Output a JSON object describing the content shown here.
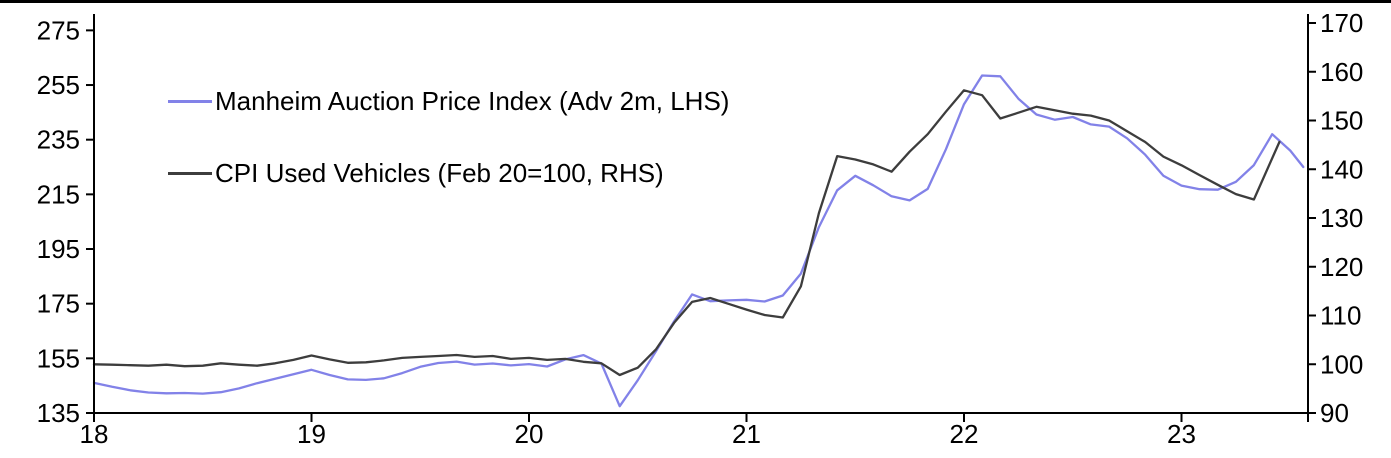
{
  "chart_data": {
    "type": "line",
    "title": "",
    "x_axis": {
      "ticks": [
        18,
        19,
        20,
        21,
        22,
        23
      ],
      "range": [
        18,
        23.58
      ],
      "grid": false
    },
    "left_axis": {
      "ticks": [
        135,
        155,
        175,
        195,
        215,
        235,
        255,
        275
      ],
      "range": [
        135,
        277.5
      ]
    },
    "right_axis": {
      "ticks": [
        90,
        100,
        110,
        120,
        130,
        140,
        150,
        160,
        170
      ],
      "range": [
        90,
        172
      ]
    },
    "legend_position": "top-left-inside",
    "series": [
      {
        "name": "Manheim Auction Price Index (Adv 2m, LHS)",
        "axis": "lhs",
        "color": "#8282e8",
        "points": [
          [
            18.0,
            146.0
          ],
          [
            18.083,
            144.6
          ],
          [
            18.167,
            143.3
          ],
          [
            18.25,
            142.5
          ],
          [
            18.333,
            142.2
          ],
          [
            18.417,
            142.3
          ],
          [
            18.5,
            142.1
          ],
          [
            18.583,
            142.6
          ],
          [
            18.667,
            144.0
          ],
          [
            18.75,
            145.9
          ],
          [
            18.833,
            147.5
          ],
          [
            18.917,
            149.2
          ],
          [
            19.0,
            150.8
          ],
          [
            19.083,
            148.9
          ],
          [
            19.167,
            147.3
          ],
          [
            19.25,
            147.1
          ],
          [
            19.333,
            147.7
          ],
          [
            19.417,
            149.6
          ],
          [
            19.5,
            151.9
          ],
          [
            19.583,
            153.3
          ],
          [
            19.667,
            153.8
          ],
          [
            19.75,
            152.7
          ],
          [
            19.833,
            153.1
          ],
          [
            19.917,
            152.4
          ],
          [
            20.0,
            152.9
          ],
          [
            20.083,
            152.0
          ],
          [
            20.167,
            154.6
          ],
          [
            20.25,
            156.2
          ],
          [
            20.333,
            153.1
          ],
          [
            20.417,
            137.5
          ],
          [
            20.5,
            147.0
          ],
          [
            20.583,
            157.5
          ],
          [
            20.667,
            168.5
          ],
          [
            20.75,
            178.4
          ],
          [
            20.833,
            175.9
          ],
          [
            20.917,
            176.2
          ],
          [
            21.0,
            176.4
          ],
          [
            21.083,
            175.8
          ],
          [
            21.167,
            178.0
          ],
          [
            21.25,
            186.0
          ],
          [
            21.333,
            203.0
          ],
          [
            21.417,
            216.5
          ],
          [
            21.5,
            221.8
          ],
          [
            21.583,
            218.3
          ],
          [
            21.667,
            214.3
          ],
          [
            21.75,
            212.8
          ],
          [
            21.833,
            217.0
          ],
          [
            21.917,
            231.5
          ],
          [
            22.0,
            248.0
          ],
          [
            22.083,
            258.5
          ],
          [
            22.167,
            258.2
          ],
          [
            22.25,
            250.0
          ],
          [
            22.333,
            244.2
          ],
          [
            22.417,
            242.3
          ],
          [
            22.5,
            243.3
          ],
          [
            22.583,
            240.6
          ],
          [
            22.667,
            239.8
          ],
          [
            22.75,
            235.5
          ],
          [
            22.833,
            229.5
          ],
          [
            22.917,
            221.8
          ],
          [
            23.0,
            218.2
          ],
          [
            23.083,
            216.9
          ],
          [
            23.167,
            216.7
          ],
          [
            23.25,
            219.6
          ],
          [
            23.333,
            225.7
          ],
          [
            23.417,
            237.0
          ],
          [
            23.5,
            231.0
          ],
          [
            23.56,
            225.0
          ]
        ]
      },
      {
        "name": "CPI Used Vehicles (Feb 20=100, RHS)",
        "axis": "rhs",
        "color": "#3d3d3d",
        "points": [
          [
            18.0,
            100.0
          ],
          [
            18.083,
            99.9
          ],
          [
            18.167,
            99.8
          ],
          [
            18.25,
            99.7
          ],
          [
            18.333,
            99.9
          ],
          [
            18.417,
            99.6
          ],
          [
            18.5,
            99.7
          ],
          [
            18.583,
            100.2
          ],
          [
            18.667,
            99.9
          ],
          [
            18.75,
            99.7
          ],
          [
            18.833,
            100.2
          ],
          [
            18.917,
            100.9
          ],
          [
            19.0,
            101.8
          ],
          [
            19.083,
            101.0
          ],
          [
            19.167,
            100.3
          ],
          [
            19.25,
            100.4
          ],
          [
            19.333,
            100.8
          ],
          [
            19.417,
            101.3
          ],
          [
            19.5,
            101.5
          ],
          [
            19.583,
            101.7
          ],
          [
            19.667,
            101.9
          ],
          [
            19.75,
            101.5
          ],
          [
            19.833,
            101.7
          ],
          [
            19.917,
            101.1
          ],
          [
            20.0,
            101.3
          ],
          [
            20.083,
            100.9
          ],
          [
            20.167,
            101.1
          ],
          [
            20.25,
            100.5
          ],
          [
            20.333,
            100.2
          ],
          [
            20.417,
            97.8
          ],
          [
            20.5,
            99.3
          ],
          [
            20.583,
            103.0
          ],
          [
            20.667,
            108.5
          ],
          [
            20.75,
            112.8
          ],
          [
            20.833,
            113.6
          ],
          [
            20.917,
            112.4
          ],
          [
            21.0,
            111.2
          ],
          [
            21.083,
            110.1
          ],
          [
            21.167,
            109.6
          ],
          [
            21.25,
            116.0
          ],
          [
            21.333,
            131.0
          ],
          [
            21.417,
            142.7
          ],
          [
            21.5,
            142.0
          ],
          [
            21.583,
            141.0
          ],
          [
            21.667,
            139.5
          ],
          [
            21.75,
            143.6
          ],
          [
            21.833,
            147.2
          ],
          [
            21.917,
            151.8
          ],
          [
            22.0,
            156.2
          ],
          [
            22.083,
            155.2
          ],
          [
            22.167,
            150.4
          ],
          [
            22.25,
            151.6
          ],
          [
            22.333,
            152.8
          ],
          [
            22.417,
            152.1
          ],
          [
            22.5,
            151.4
          ],
          [
            22.583,
            151.0
          ],
          [
            22.667,
            150.0
          ],
          [
            22.75,
            147.8
          ],
          [
            22.833,
            145.6
          ],
          [
            22.917,
            142.6
          ],
          [
            23.0,
            140.8
          ],
          [
            23.083,
            138.8
          ],
          [
            23.167,
            136.8
          ],
          [
            23.25,
            134.9
          ],
          [
            23.333,
            133.8
          ],
          [
            23.45,
            145.6
          ]
        ]
      }
    ]
  },
  "colors": {
    "background": "#ffffff",
    "axis": "#000000",
    "text": "#000000",
    "top_border": "#000000"
  }
}
